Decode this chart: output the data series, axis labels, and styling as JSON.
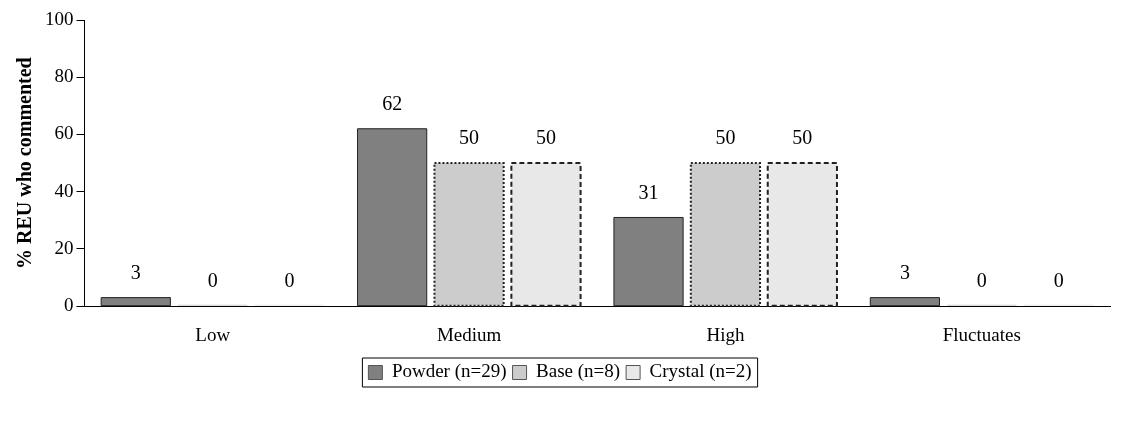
{
  "chart_data": {
    "type": "bar",
    "ylabel": "% REU who commented",
    "categories": [
      "Low",
      "Medium",
      "High",
      "Fluctuates"
    ],
    "series": [
      {
        "name": "Powder (n=29)",
        "color": "#808080",
        "line_style": "solid",
        "values": [
          3,
          62,
          31,
          3
        ]
      },
      {
        "name": "Base (n=8)",
        "color": "#cccccc",
        "line_style": "dotted",
        "values": [
          0,
          50,
          50,
          0
        ]
      },
      {
        "name": "Crystal (n=2)",
        "color": "#e8e8e8",
        "line_style": "dashed",
        "values": [
          0,
          50,
          50,
          0
        ]
      }
    ],
    "ylim": [
      0,
      100
    ],
    "yticks": [
      0,
      20,
      40,
      60,
      80,
      100
    ],
    "grid": false,
    "legend": "bottom",
    "data_labels": true
  }
}
